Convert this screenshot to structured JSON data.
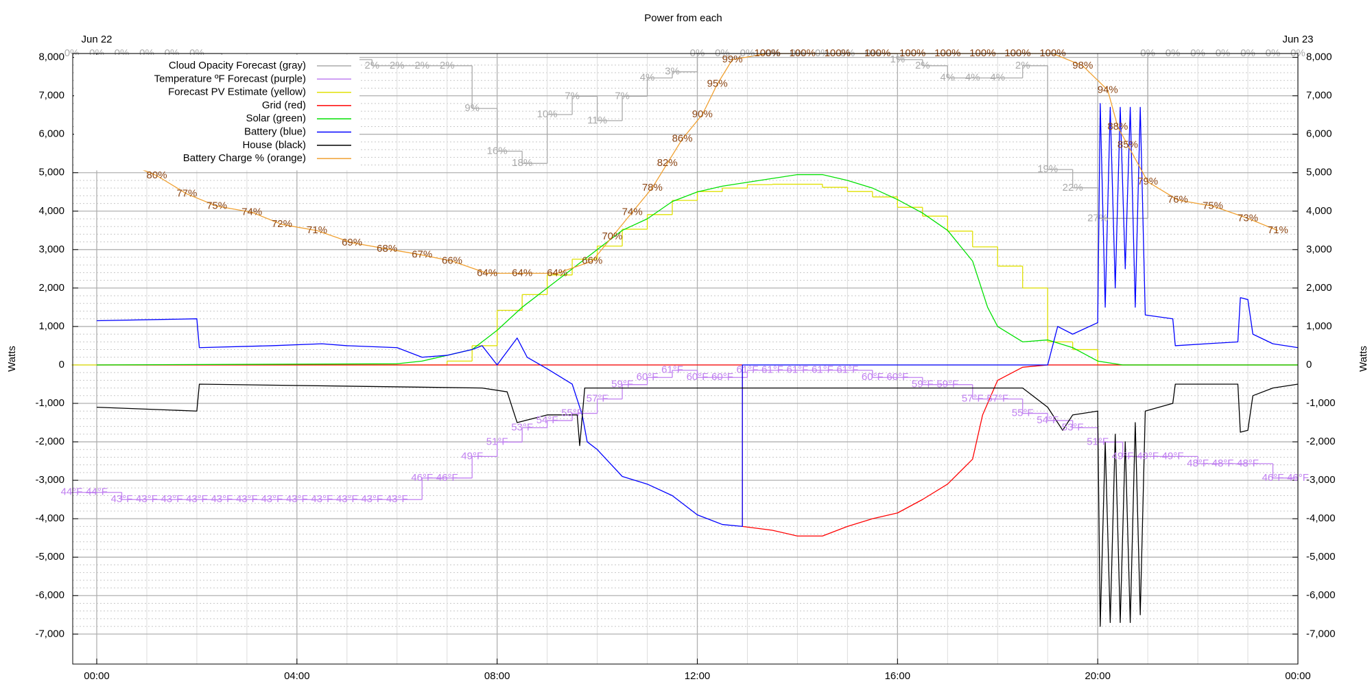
{
  "chart_data": {
    "type": "line",
    "title": "Power from each",
    "ylabel": "Watts",
    "xlim": [
      -0.48,
      24
    ],
    "ylim": [
      -7780,
      8100
    ],
    "xticks": [
      {
        "value": 0,
        "label": "00:00"
      },
      {
        "value": 4,
        "label": "04:00"
      },
      {
        "value": 8,
        "label": "08:00"
      },
      {
        "value": 12,
        "label": "12:00"
      },
      {
        "value": 16,
        "label": "16:00"
      },
      {
        "value": 20,
        "label": "20:00"
      },
      {
        "value": 24,
        "label": "00:00"
      }
    ],
    "x2ticks": [
      {
        "value": 0,
        "label": "Jun 22"
      },
      {
        "value": 24,
        "label": "Jun 23"
      }
    ],
    "yticks": [
      {
        "value": -7000,
        "label": "-7,000"
      },
      {
        "value": -6000,
        "label": "-6,000"
      },
      {
        "value": -5000,
        "label": "-5,000"
      },
      {
        "value": -4000,
        "label": "-4,000"
      },
      {
        "value": -3000,
        "label": "-3,000"
      },
      {
        "value": -2000,
        "label": "-2,000"
      },
      {
        "value": -1000,
        "label": "-1,000"
      },
      0,
      {
        "value": 1000,
        "label": "1,000"
      },
      {
        "value": 2000,
        "label": "2,000"
      },
      {
        "value": 3000,
        "label": "3,000"
      },
      {
        "value": 4000,
        "label": "4,000"
      },
      {
        "value": 5000,
        "label": "5,000"
      },
      {
        "value": 6000,
        "label": "6,000"
      },
      {
        "value": 7000,
        "label": "7,000"
      },
      {
        "value": 8000,
        "label": "8,000"
      }
    ],
    "grid": true,
    "legend": "top-left",
    "series": [
      {
        "name": "Cloud Opacity Forecast (gray)",
        "color": "#aaaaaa",
        "kind": "step",
        "label_color": "#aaaaaa",
        "ylim": [
          100,
          0
        ],
        "x": [
          -0.5,
          0,
          0.5,
          1,
          1.5,
          2,
          2.5,
          3,
          3.5,
          4,
          4.5,
          5,
          5.5,
          6,
          6.5,
          7,
          7.5,
          8,
          8.5,
          9,
          9.5,
          10,
          10.5,
          11,
          11.5,
          12,
          12.5,
          13,
          13.5,
          14,
          14.5,
          15,
          15.5,
          16,
          16.5,
          17,
          17.5,
          18,
          18.5,
          19,
          19.5,
          20,
          21,
          21.5,
          22,
          22.5,
          23,
          23.5,
          24
        ],
        "values": [
          0,
          0,
          0,
          0,
          0,
          0,
          1,
          1,
          1,
          1,
          1,
          1,
          2,
          2,
          2,
          2,
          9,
          16,
          18,
          10,
          7,
          11,
          7,
          4,
          3,
          0,
          0,
          0,
          0,
          0,
          0,
          0,
          0,
          1,
          2,
          4,
          4,
          4,
          2,
          19,
          22,
          27,
          0,
          0,
          0,
          0,
          0,
          0,
          0
        ],
        "value_labels": [
          "0%",
          "0%",
          "0%",
          "0%",
          "0%",
          "0%",
          "1%",
          "1%",
          "1%",
          "1%",
          "1%",
          "1%",
          "2%",
          "2%",
          "2%",
          "2%",
          "9%",
          "16%",
          "18%",
          "10%",
          "7%",
          "11%",
          "7%",
          "4%",
          "3%",
          "0%",
          "0%",
          "0%",
          "0%",
          "0%",
          "0%",
          "0%",
          "0%",
          "1%",
          "2%",
          "4%",
          "4%",
          "4%",
          "2%",
          "19%",
          "22%",
          "27%",
          "0%",
          "0%",
          "0%",
          "0%",
          "0%",
          "0%",
          "0%"
        ]
      },
      {
        "name": "Temperature ºF Forecast (purple)",
        "color": "#c080f0",
        "kind": "step",
        "label_color": "#c080f0",
        "ylim": [
          20.1,
          105.1
        ],
        "x": [
          -0.5,
          0,
          0.5,
          1,
          1.5,
          2,
          2.5,
          3,
          3.5,
          4,
          4.5,
          5,
          5.5,
          6,
          6.5,
          7,
          7.5,
          8,
          8.5,
          9,
          9.5,
          10,
          10.5,
          11,
          11.5,
          12,
          12.5,
          13,
          13.5,
          14,
          14.5,
          15,
          15.5,
          16,
          16.5,
          17,
          17.5,
          18,
          18.5,
          19,
          19.5,
          20,
          20.5,
          21,
          21.5,
          22,
          22.5,
          23,
          23.5,
          24
        ],
        "values": [
          44,
          44,
          43,
          43,
          43,
          43,
          43,
          43,
          43,
          43,
          43,
          43,
          43,
          43,
          46,
          46,
          49,
          51,
          53,
          54,
          55,
          57,
          59,
          60,
          61,
          60,
          60,
          61,
          61,
          61,
          61,
          61,
          60,
          60,
          59,
          59,
          57,
          57,
          55,
          54,
          53,
          51,
          49,
          49,
          49,
          48,
          48,
          48,
          46,
          46
        ],
        "value_labels": [
          "44°F",
          "44°F",
          "43°F",
          "43°F",
          "43°F",
          "43°F",
          "43°F",
          "43°F",
          "43°F",
          "43°F",
          "43°F",
          "43°F",
          "43°F",
          "43°F",
          "46°F",
          "46°F",
          "49°F",
          "51°F",
          "53°F",
          "54°F",
          "55°F",
          "57°F",
          "59°F",
          "60°F",
          "61°F",
          "60°F",
          "60°F",
          "61°F",
          "61°F",
          "61°F",
          "61°F",
          "61°F",
          "60°F",
          "60°F",
          "59°F",
          "59°F",
          "57°F",
          "57°F",
          "55°F",
          "54°F",
          "53°F",
          "51°F",
          "49°F",
          "49°F",
          "49°F",
          "48°F",
          "48°F",
          "48°F",
          "46°F",
          "46°F"
        ]
      },
      {
        "name": "Forecast PV Estimate (yellow)",
        "color": "#e0e000",
        "kind": "step",
        "x": [
          -0.5,
          7,
          7.5,
          8,
          8.5,
          9,
          9.5,
          10,
          10.5,
          11,
          11.5,
          12,
          12.5,
          13,
          13.5,
          14,
          14.5,
          15,
          15.5,
          16,
          16.5,
          17,
          17.5,
          18,
          18.5,
          19,
          19.5,
          20,
          24
        ],
        "values": [
          0,
          100,
          500,
          1420,
          1830,
          2340,
          2750,
          3090,
          3530,
          3910,
          4280,
          4510,
          4600,
          4690,
          4700,
          4700,
          4620,
          4510,
          4370,
          4100,
          3870,
          3480,
          3070,
          2570,
          2000,
          600,
          400,
          0,
          0
        ]
      },
      {
        "name": "Grid (red)",
        "color": "#ff0000",
        "kind": "line",
        "x": [
          0,
          12.9,
          12.9,
          13.5,
          14,
          14.5,
          15,
          15.5,
          16,
          16.5,
          17,
          17.5,
          17.7,
          18,
          18.5,
          19,
          24
        ],
        "values": [
          0,
          0,
          -4200,
          -4300,
          -4450,
          -4450,
          -4200,
          -4000,
          -3850,
          -3500,
          -3100,
          -2450,
          -1300,
          -400,
          -60,
          0,
          0
        ]
      },
      {
        "name": "Solar (green)",
        "color": "#00e000",
        "kind": "line",
        "x": [
          0,
          6,
          6.5,
          7,
          7.5,
          8,
          8.5,
          9,
          9.5,
          10,
          10.5,
          11,
          11.5,
          12,
          12.5,
          13,
          13.5,
          14,
          14.5,
          15,
          15.5,
          16,
          16.5,
          17,
          17.5,
          17.8,
          18,
          18.5,
          19,
          19.5,
          20,
          20.5,
          24
        ],
        "values": [
          0,
          30,
          100,
          250,
          400,
          900,
          1500,
          2000,
          2500,
          3000,
          3500,
          3800,
          4250,
          4500,
          4650,
          4750,
          4850,
          4950,
          4950,
          4800,
          4600,
          4300,
          3950,
          3500,
          2700,
          1500,
          1000,
          600,
          650,
          450,
          100,
          0,
          0
        ]
      },
      {
        "name": "Battery (blue)",
        "color": "#0000ff",
        "kind": "line",
        "x": [
          0,
          2,
          2.05,
          3.5,
          4.5,
          5,
          6,
          6.5,
          7,
          7.5,
          7.7,
          8,
          8.4,
          8.6,
          9,
          9.5,
          9.7,
          9.8,
          10,
          10.5,
          11,
          11.5,
          12,
          12.5,
          12.9,
          12.9,
          19,
          19.2,
          19.5,
          20,
          20.05,
          20.15,
          20.25,
          20.35,
          20.45,
          20.55,
          20.65,
          20.75,
          20.85,
          20.95,
          21.5,
          21.55,
          22.8,
          22.85,
          23,
          23.1,
          23.5,
          24
        ],
        "values": [
          1150,
          1200,
          450,
          500,
          550,
          500,
          450,
          200,
          250,
          400,
          500,
          0,
          700,
          200,
          -100,
          -500,
          -1300,
          -2000,
          -2200,
          -2900,
          -3100,
          -3400,
          -3900,
          -4150,
          -4200,
          0,
          0,
          1000,
          800,
          1100,
          6800,
          1500,
          6700,
          2000,
          6700,
          2500,
          6700,
          1500,
          6700,
          1300,
          1200,
          500,
          600,
          1750,
          1700,
          800,
          550,
          450
        ]
      },
      {
        "name": "House (black)",
        "color": "#000000",
        "kind": "line",
        "x": [
          0,
          2,
          2.05,
          7.7,
          8.2,
          8.4,
          9,
          9.6,
          9.65,
          9.75,
          12.9,
          18.5,
          19,
          19.3,
          19.5,
          20,
          20.05,
          20.15,
          20.25,
          20.35,
          20.45,
          20.55,
          20.65,
          20.75,
          20.85,
          20.95,
          21.5,
          21.55,
          22.8,
          22.85,
          23,
          23.1,
          23.5,
          24
        ],
        "values": [
          -1100,
          -1200,
          -500,
          -600,
          -700,
          -1500,
          -1300,
          -1300,
          -2100,
          -600,
          -600,
          -600,
          -1100,
          -1700,
          -1300,
          -1200,
          -6800,
          -2000,
          -6700,
          -1800,
          -6700,
          -2000,
          -6700,
          -1500,
          -6500,
          -1200,
          -1000,
          -500,
          -500,
          -1750,
          -1700,
          -800,
          -600,
          -500
        ]
      },
      {
        "name": "Battery Charge % (orange)",
        "color": "#f0a030",
        "kind": "line",
        "label_color": "#8b4513",
        "ylim": [
          0,
          100
        ],
        "x": [
          0,
          0.6,
          1.2,
          1.8,
          2.4,
          3.1,
          3.7,
          4.4,
          5.1,
          5.8,
          6.5,
          7.1,
          7.8,
          8.5,
          9.2,
          9.9,
          10.3,
          10.7,
          11.1,
          11.4,
          11.7,
          12.1,
          12.4,
          12.7,
          13.4,
          14.1,
          14.8,
          15.6,
          16.3,
          17,
          17.7,
          18.4,
          19.1,
          19.7,
          20.2,
          20.4,
          20.6,
          21,
          21.6,
          22.3,
          23,
          23.6
        ],
        "values": [
          85,
          82,
          80,
          77,
          75,
          74,
          72,
          71,
          69,
          68,
          67,
          66,
          64,
          64,
          64,
          66,
          70,
          74,
          78,
          82,
          86,
          90,
          95,
          99,
          100,
          100,
          100,
          100,
          100,
          100,
          100,
          100,
          100,
          98,
          94,
          88,
          85,
          79,
          76,
          75,
          73,
          71
        ],
        "value_labels": [
          "85%",
          "82%",
          "80%",
          "77%",
          "75%",
          "74%",
          "72%",
          "71%",
          "69%",
          "68%",
          "67%",
          "66%",
          "64%",
          "64%",
          "64%",
          "66%",
          "70%",
          "74%",
          "78%",
          "82%",
          "86%",
          "90%",
          "95%",
          "99%",
          "100%",
          "100%",
          "100%",
          "100%",
          "100%",
          "100%",
          "100%",
          "100%",
          "100%",
          "98%",
          "94%",
          "88%",
          "85%",
          "79%",
          "76%",
          "75%",
          "73%",
          "71%"
        ]
      }
    ]
  }
}
